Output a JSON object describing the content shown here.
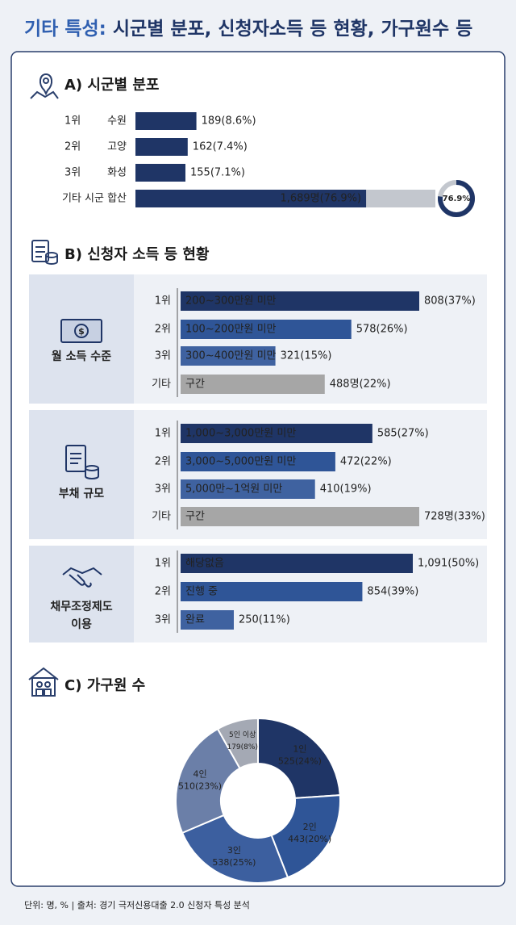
{
  "title": {
    "highlight": "기타 특성:",
    "text": "시군별 분포, 신청자소득 등 현황, 가구원수 등"
  },
  "region": {
    "heading": "A) 시군별 분포",
    "rows": [
      {
        "rank": "1위",
        "name": "수원",
        "value": 189,
        "value_label": "189(8.6%)",
        "color": "#1f3566"
      },
      {
        "rank": "2위",
        "name": "고양",
        "value": 162,
        "value_label": "162(7.4%)",
        "color": "#1f3566"
      },
      {
        "rank": "3위",
        "name": "화성",
        "value": 155,
        "value_label": "155(7.1%)",
        "color": "#1f3566"
      }
    ],
    "other": {
      "name": "기타 시군 합산",
      "value": 1689,
      "value_label": "1,689명(76.9%)",
      "share": 76.9,
      "share_label": "76.9%",
      "color": "#1f3566"
    }
  },
  "income": {
    "heading": "B) 신청자 소득 등 현황",
    "groups": [
      {
        "label": [
          "월 소득 수준"
        ],
        "rows": [
          {
            "rank": "1위",
            "bracket": "200~300만원 미만",
            "value": 808,
            "value_label": "808(37%)",
            "color": "#1f3566"
          },
          {
            "rank": "2위",
            "bracket": "100~200만원 미만",
            "value": 578,
            "value_label": "578(26%)",
            "color": "#2f5597"
          },
          {
            "rank": "3위",
            "bracket": "300~400만원 미만",
            "value": 321,
            "value_label": "321(15%)",
            "color": "#3f62a0"
          },
          {
            "rank": "기타",
            "bracket": "구간",
            "value": 488,
            "value_label": "488명(22%)",
            "color": "#a6a6a6"
          }
        ]
      },
      {
        "label": [
          "부채 규모"
        ],
        "rows": [
          {
            "rank": "1위",
            "bracket": "1,000~3,000만원 미만",
            "value": 585,
            "value_label": "585(27%)",
            "color": "#1f3566"
          },
          {
            "rank": "2위",
            "bracket": "3,000~5,000만원 미만",
            "value": 472,
            "value_label": "472(22%)",
            "color": "#2f5597"
          },
          {
            "rank": "3위",
            "bracket": "5,000만~1억원 미만",
            "value": 410,
            "value_label": "410(19%)",
            "color": "#3f62a0"
          },
          {
            "rank": "기타",
            "bracket": "구간",
            "value": 728,
            "value_label": "728명(33%)",
            "color": "#a6a6a6"
          }
        ]
      },
      {
        "label": [
          "채무조정제도",
          "이용"
        ],
        "rows": [
          {
            "rank": "1위",
            "bracket": "해당없음",
            "value": 1091,
            "value_label": "1,091(50%)",
            "color": "#1f3566"
          },
          {
            "rank": "2위",
            "bracket": "진행 중",
            "value": 854,
            "value_label": "854(39%)",
            "color": "#2f5597"
          },
          {
            "rank": "3위",
            "bracket": "완료",
            "value": 250,
            "value_label": "250(11%)",
            "color": "#3f62a0"
          }
        ]
      }
    ]
  },
  "household": {
    "heading": "C) 가구원 수",
    "slices": [
      {
        "name": "1인",
        "value": 525,
        "value_label": "525(24%)",
        "color": "#1f3566"
      },
      {
        "name": "2인",
        "value": 443,
        "value_label": "443(20%)",
        "color": "#2f5597"
      },
      {
        "name": "3인",
        "value": 538,
        "value_label": "538(25%)",
        "color": "#3c5f9f"
      },
      {
        "name": "4인",
        "value": 510,
        "value_label": "510(23%)",
        "color": "#6b7fa8"
      },
      {
        "name": "5인 이상",
        "value": 179,
        "value_label": "179(8%)",
        "color": "#a4a9b4"
      }
    ]
  },
  "footer": "단위: 명, % | 출처: 경기 극저신용대출 2.0 신청자 특성 분석"
}
